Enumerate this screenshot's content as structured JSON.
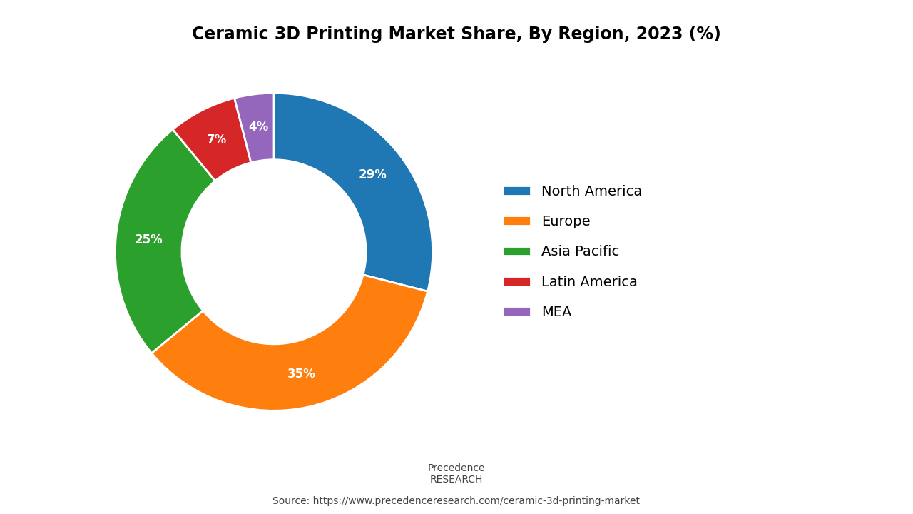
{
  "chart_data": {
    "type": "donut",
    "title": "Ceramic 3D Printing Market Share, By Region, 2023 (%)",
    "categories": [
      "North America",
      "Europe",
      "Asia Pacific",
      "Latin America",
      "MEA"
    ],
    "values": [
      29,
      35,
      25,
      7,
      4
    ],
    "value_labels": [
      "29%",
      "35%",
      "25%",
      "7%",
      "4%"
    ],
    "data_labels": true,
    "legend": "center left",
    "annotations": [
      "Precedence\nRESEARCH",
      "Source: https://www.precedenceresearch.com/ceramic-3d-printing-market"
    ]
  }
}
